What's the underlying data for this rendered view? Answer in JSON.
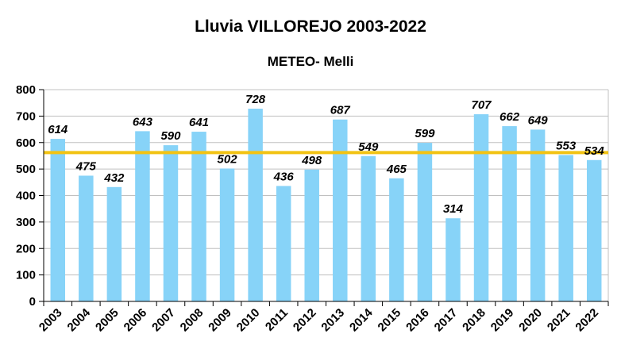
{
  "chart_data": {
    "type": "bar",
    "title": "Lluvia VILLOREJO 2003-2022",
    "subtitle": "METEO- Melli",
    "categories": [
      "2003",
      "2004",
      "2005",
      "2006",
      "2007",
      "2008",
      "2009",
      "2010",
      "2011",
      "2012",
      "2013",
      "2014",
      "2015",
      "2016",
      "2017",
      "2018",
      "2019",
      "2020",
      "2021",
      "2022"
    ],
    "values": [
      614,
      475,
      432,
      643,
      590,
      641,
      502,
      728,
      436,
      498,
      687,
      549,
      465,
      599,
      314,
      707,
      662,
      649,
      553,
      534
    ],
    "value_labels": [
      "614",
      "475",
      "432",
      "643",
      "590",
      "641",
      "502",
      "728",
      "436",
      "498",
      "687",
      "549",
      "465",
      "599",
      "314",
      "707",
      "662",
      "649",
      "553",
      "534"
    ],
    "reference_line": 562,
    "ylim": [
      0,
      800
    ],
    "yticks": [
      "0",
      "100",
      "200",
      "300",
      "400",
      "500",
      "600",
      "700",
      "800"
    ],
    "grid": true,
    "colors": {
      "bar": "#87d3f8",
      "reference_line": "#f2c314",
      "grid": "#c0c0c0",
      "axis": "#000000"
    }
  }
}
